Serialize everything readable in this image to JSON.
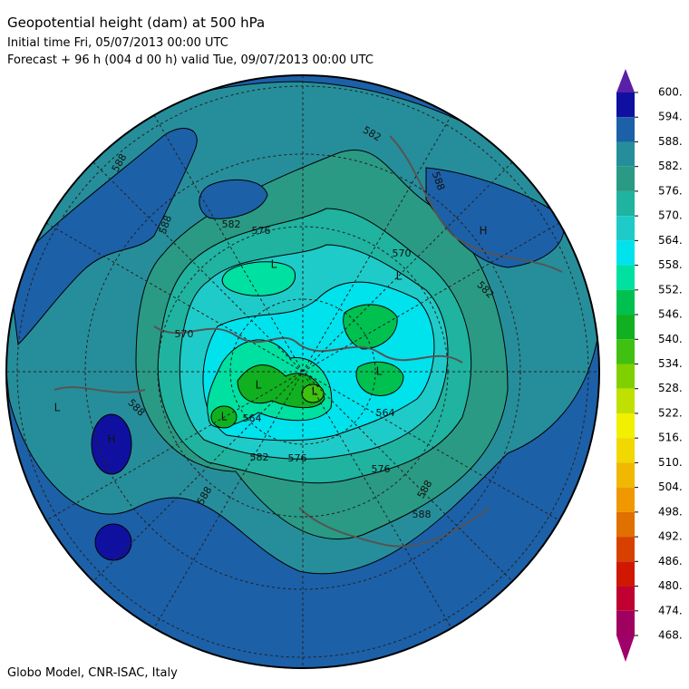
{
  "header": {
    "title": "Geopotential height (dam) at 500 hPa",
    "line1": "Initial time  Fri, 05/07/2013  00:00 UTC",
    "line2": "Forecast  +  96 h  (004 d 00 h)  valid Tue, 09/07/2013 00:00 UTC"
  },
  "footer": "Globo Model, CNR-ISAC, Italy",
  "colorbar": {
    "ticks": [
      {
        "value": 600,
        "label": "600."
      },
      {
        "value": 594,
        "label": "594."
      },
      {
        "value": 588,
        "label": "588."
      },
      {
        "value": 582,
        "label": "582."
      },
      {
        "value": 576,
        "label": "576."
      },
      {
        "value": 570,
        "label": "570."
      },
      {
        "value": 564,
        "label": "564."
      },
      {
        "value": 558,
        "label": "558."
      },
      {
        "value": 552,
        "label": "552."
      },
      {
        "value": 546,
        "label": "546."
      },
      {
        "value": 540,
        "label": "540."
      },
      {
        "value": 534,
        "label": "534."
      },
      {
        "value": 528,
        "label": "528."
      },
      {
        "value": 522,
        "label": "522."
      },
      {
        "value": 516,
        "label": "516."
      },
      {
        "value": 510,
        "label": "510."
      },
      {
        "value": 504,
        "label": "504."
      },
      {
        "value": 498,
        "label": "498."
      },
      {
        "value": 492,
        "label": "492."
      },
      {
        "value": 486,
        "label": "486."
      },
      {
        "value": 480,
        "label": "480."
      },
      {
        "value": 474,
        "label": "474."
      },
      {
        "value": 468,
        "label": "468."
      }
    ],
    "colors": [
      "#1010a0",
      "#1c60a8",
      "#268e9a",
      "#2a9a84",
      "#1fb3a0",
      "#1ecbc8",
      "#00e2ec",
      "#00e0a0",
      "#00c050",
      "#10b020",
      "#40c010",
      "#80d000",
      "#c0e000",
      "#f0f000",
      "#f0d800",
      "#f0b800",
      "#f09800",
      "#e07000",
      "#d84000",
      "#d01800",
      "#c00030",
      "#a00060"
    ],
    "over_color": "#5a20a8",
    "under_color": "#a0006a"
  },
  "map_labels": [
    "588",
    "588",
    "582",
    "576",
    "582",
    "588",
    "H",
    "582",
    "570",
    "L",
    "L",
    "564",
    "576",
    "588",
    "588",
    "576",
    "582",
    "564",
    "570",
    "L",
    "588",
    "H",
    "588",
    "L",
    "L",
    "L",
    "L"
  ]
}
